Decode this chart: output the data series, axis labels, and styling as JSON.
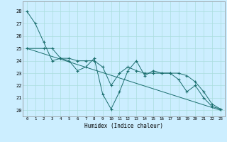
{
  "title": "",
  "xlabel": "Humidex (Indice chaleur)",
  "bg_color": "#cceeff",
  "grid_color": "#aadddd",
  "line_color": "#1a6e6e",
  "xlim": [
    -0.5,
    23.5
  ],
  "ylim": [
    19.5,
    28.8
  ],
  "yticks": [
    20,
    21,
    22,
    23,
    24,
    25,
    26,
    27,
    28
  ],
  "xticks": [
    0,
    1,
    2,
    3,
    4,
    5,
    6,
    7,
    8,
    9,
    10,
    11,
    12,
    13,
    14,
    15,
    16,
    17,
    18,
    19,
    20,
    21,
    22,
    23
  ],
  "series": [
    {
      "x": [
        0,
        1,
        2,
        3,
        4,
        5,
        6,
        7,
        8,
        9,
        10,
        11,
        12,
        13,
        14,
        15,
        16,
        17,
        18,
        19,
        20,
        21,
        22,
        23
      ],
      "y": [
        28,
        27,
        25.5,
        24,
        24.2,
        24,
        23.2,
        23.5,
        24.2,
        21.3,
        20.1,
        21.5,
        23.2,
        24,
        22.8,
        23.2,
        23,
        23,
        23,
        22.8,
        22.3,
        21.5,
        20.5,
        20.1
      ],
      "has_markers": true
    },
    {
      "x": [
        0,
        2,
        3,
        4,
        5,
        6,
        7,
        8,
        9,
        10,
        11,
        12,
        13,
        14,
        15,
        16,
        17,
        18,
        19,
        20,
        21,
        22,
        23
      ],
      "y": [
        25,
        25.0,
        25.0,
        24.2,
        24.2,
        24.0,
        24.0,
        24.0,
        23.5,
        22.0,
        23.0,
        23.5,
        23.2,
        23.0,
        23.0,
        23.0,
        23.0,
        22.5,
        21.5,
        22.0,
        21.0,
        20.3,
        20.1
      ],
      "has_markers": true
    },
    {
      "x": [
        0,
        23
      ],
      "y": [
        25,
        20
      ],
      "has_markers": false
    }
  ]
}
